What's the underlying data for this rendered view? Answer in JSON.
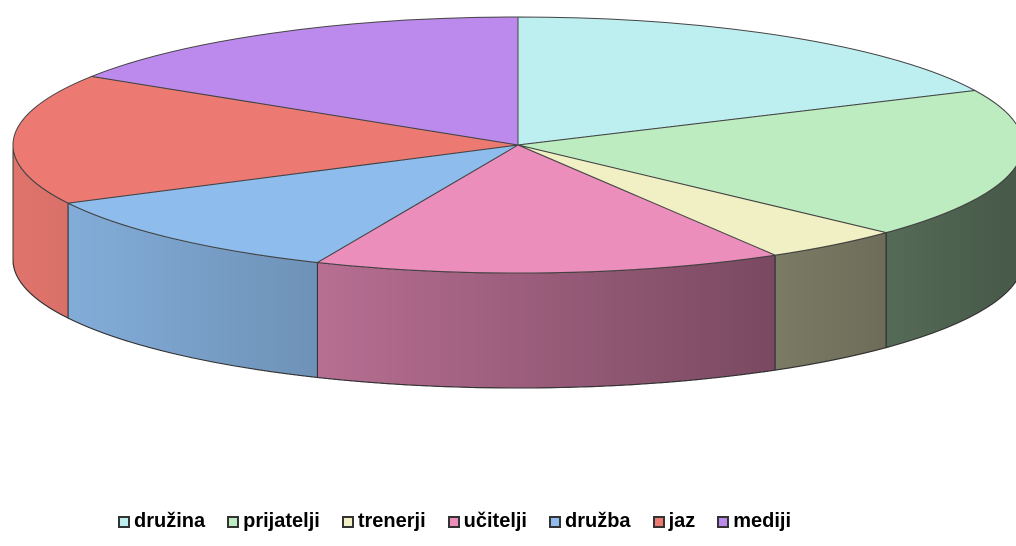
{
  "chart_data": {
    "type": "pie",
    "categories": [
      "družina",
      "prijatelji",
      "trenerji",
      "učitelji",
      "družba",
      "jaz",
      "mediji"
    ],
    "values": [
      18,
      19,
      4.5,
      15,
      11,
      16.5,
      16
    ],
    "colors": [
      "#bdeff0",
      "#bcecc0",
      "#f0f0c4",
      "#ec8ebc",
      "#8ebcec",
      "#ec7a72",
      "#bc8aec"
    ],
    "legend": "bottom"
  }
}
